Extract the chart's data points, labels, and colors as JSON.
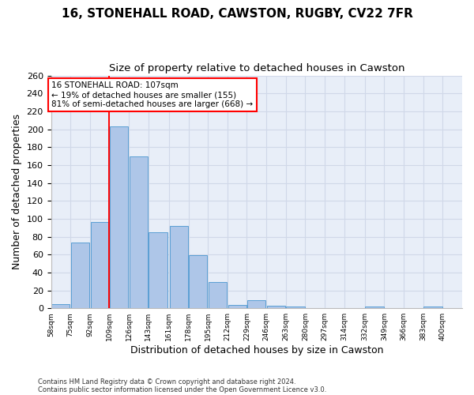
{
  "title1": "16, STONEHALL ROAD, CAWSTON, RUGBY, CV22 7FR",
  "title2": "Size of property relative to detached houses in Cawston",
  "xlabel": "Distribution of detached houses by size in Cawston",
  "ylabel": "Number of detached properties",
  "bar_bins": [
    58,
    75,
    92,
    109,
    126,
    143,
    161,
    178,
    195,
    212,
    229,
    246,
    263,
    280,
    297,
    314,
    332,
    349,
    366,
    383,
    400
  ],
  "bar_heights": [
    5,
    73,
    96,
    203,
    170,
    85,
    92,
    59,
    29,
    4,
    9,
    3,
    2,
    0,
    0,
    0,
    2,
    0,
    0,
    2
  ],
  "bar_color": "#aec6e8",
  "bar_edge_color": "#5a9fd4",
  "vline_x": 109,
  "vline_color": "red",
  "annotation_text": "16 STONEHALL ROAD: 107sqm\n← 19% of detached houses are smaller (155)\n81% of semi-detached houses are larger (668) →",
  "annotation_box_color": "white",
  "annotation_box_edge": "red",
  "ylim": [
    0,
    260
  ],
  "yticks": [
    0,
    20,
    40,
    60,
    80,
    100,
    120,
    140,
    160,
    180,
    200,
    220,
    240,
    260
  ],
  "xtick_labels": [
    "58sqm",
    "75sqm",
    "92sqm",
    "109sqm",
    "126sqm",
    "143sqm",
    "161sqm",
    "178sqm",
    "195sqm",
    "212sqm",
    "229sqm",
    "246sqm",
    "263sqm",
    "280sqm",
    "297sqm",
    "314sqm",
    "332sqm",
    "349sqm",
    "366sqm",
    "383sqm",
    "400sqm"
  ],
  "grid_color": "#d0d8e8",
  "background_color": "#e8eef8",
  "footer_line1": "Contains HM Land Registry data © Crown copyright and database right 2024.",
  "footer_line2": "Contains public sector information licensed under the Open Government Licence v3.0.",
  "title1_fontsize": 11,
  "title2_fontsize": 9.5,
  "xlabel_fontsize": 9,
  "ylabel_fontsize": 9,
  "annotation_fontsize": 7.5
}
